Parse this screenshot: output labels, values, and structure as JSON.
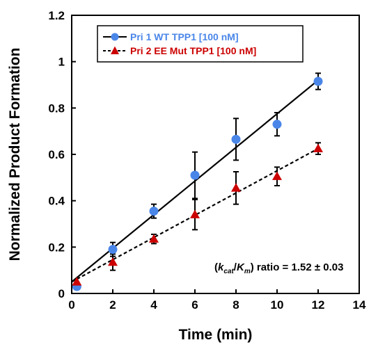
{
  "chart_data": {
    "type": "scatter",
    "xlabel": "Time (min)",
    "ylabel": "Normalized Product Formation",
    "xlim": [
      0,
      14
    ],
    "ylim": [
      0,
      1.2
    ],
    "xticks": [
      "0",
      "2",
      "4",
      "6",
      "8",
      "10",
      "12",
      "14"
    ],
    "yticks": [
      "0",
      "0.2",
      "0.4",
      "0.6",
      "0.8",
      "1",
      "1.2"
    ],
    "grid": false,
    "legend_position": "top-left",
    "series": [
      {
        "name": "Pri 1 WT TPP1 [100 nM]",
        "color": "#4a86e8",
        "marker": "circle",
        "line_style": "solid",
        "x": [
          0.25,
          2,
          4,
          6,
          8,
          10,
          12
        ],
        "y": [
          0.03,
          0.19,
          0.355,
          0.51,
          0.665,
          0.73,
          0.915
        ],
        "yerr": [
          0.0,
          0.03,
          0.03,
          0.1,
          0.09,
          0.05,
          0.035
        ],
        "fit": {
          "x": [
            0,
            12
          ],
          "y": [
            0.05,
            0.92
          ]
        }
      },
      {
        "name": "Pri 2 EE Mut TPP1 [100 nM]",
        "color": "#cc0000",
        "marker": "triangle",
        "line_style": "dashed",
        "x": [
          0.25,
          2,
          4,
          6,
          8,
          10,
          12
        ],
        "y": [
          0.05,
          0.135,
          0.235,
          0.34,
          0.455,
          0.505,
          0.625
        ],
        "yerr": [
          0.0,
          0.035,
          0.02,
          0.065,
          0.07,
          0.04,
          0.025
        ],
        "fit": {
          "x": [
            0,
            12
          ],
          "y": [
            0.05,
            0.625
          ]
        }
      }
    ],
    "annotation": {
      "open": "(",
      "k": "k",
      "cat": "cat",
      "slash": "/",
      "K": "K",
      "m": "m",
      "rest": ") ratio = 1.52 ± 0.03"
    }
  }
}
